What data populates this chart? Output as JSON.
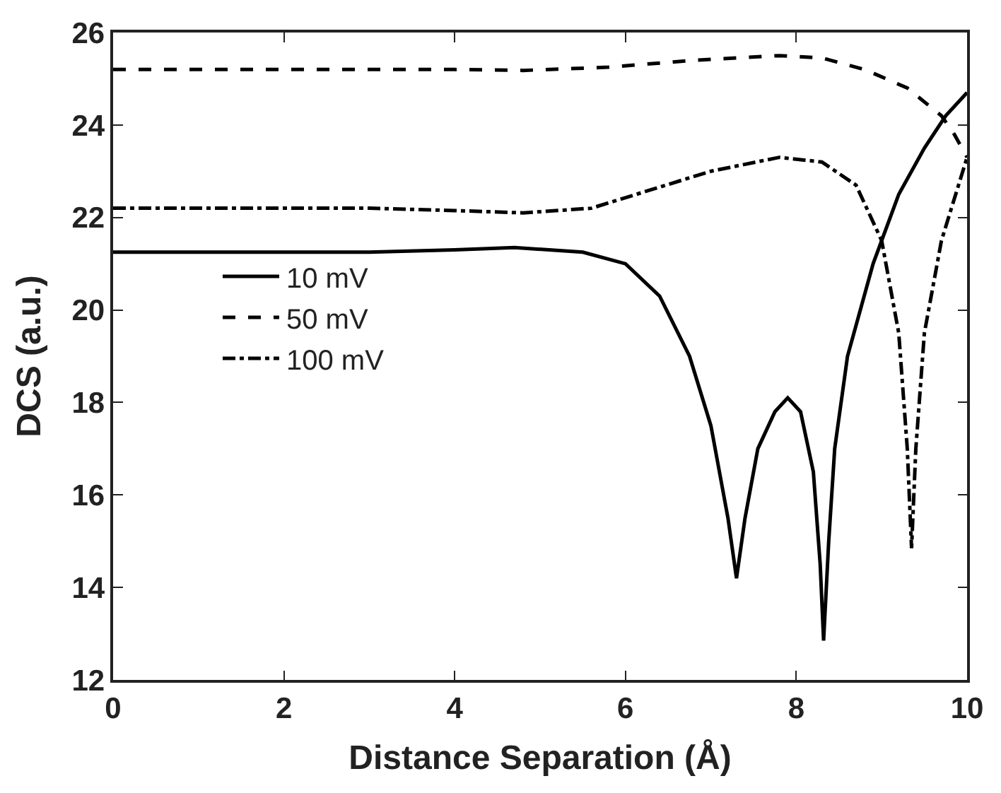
{
  "chart_data": {
    "type": "line",
    "xlabel": "Distance Separation (Å)",
    "ylabel": "DCS (a.u.)",
    "xlim": [
      0,
      10
    ],
    "xticks": [
      0,
      2,
      4,
      6,
      8,
      10
    ],
    "ylim": [
      12,
      26
    ],
    "yticks": [
      12,
      14,
      16,
      18,
      20,
      22,
      24,
      26
    ],
    "legend": "left",
    "marker": "none",
    "series": [
      {
        "name": "10 mV",
        "color": "#000000",
        "line_style": "solid",
        "x": [
          0,
          1,
          2,
          3,
          4,
          4.7,
          5.5,
          6.0,
          6.4,
          6.75,
          7.0,
          7.2,
          7.3,
          7.4,
          7.55,
          7.75,
          7.9,
          8.05,
          8.2,
          8.28,
          8.32,
          8.38,
          8.45,
          8.6,
          8.9,
          9.2,
          9.5,
          9.75,
          10
        ],
        "values": [
          21.25,
          21.25,
          21.25,
          21.25,
          21.3,
          21.35,
          21.25,
          21.0,
          20.3,
          19.0,
          17.5,
          15.5,
          14.2,
          15.5,
          17.0,
          17.8,
          18.1,
          17.8,
          16.5,
          14.5,
          12.85,
          15.0,
          17.0,
          19.0,
          21.0,
          22.5,
          23.5,
          24.2,
          24.7
        ]
      },
      {
        "name": "50 mV",
        "color": "#000000",
        "line_style": "dashed",
        "x": [
          0,
          1,
          2,
          3,
          4,
          4.8,
          5.8,
          6.8,
          7.8,
          8.3,
          8.8,
          9.3,
          9.7,
          9.85,
          10
        ],
        "values": [
          25.2,
          25.2,
          25.2,
          25.2,
          25.2,
          25.18,
          25.25,
          25.4,
          25.5,
          25.45,
          25.2,
          24.8,
          24.2,
          23.8,
          23.3
        ]
      },
      {
        "name": "100 mV",
        "color": "#000000",
        "line_style": "dashdot",
        "x": [
          0,
          1,
          2,
          3,
          4,
          4.8,
          5.6,
          6.3,
          7.0,
          7.8,
          8.3,
          8.7,
          9.0,
          9.2,
          9.3,
          9.35,
          9.4,
          9.5,
          9.7,
          10
        ],
        "values": [
          22.2,
          22.2,
          22.2,
          22.2,
          22.15,
          22.1,
          22.2,
          22.6,
          23.0,
          23.3,
          23.2,
          22.7,
          21.5,
          19.5,
          17.0,
          14.85,
          17.0,
          19.5,
          21.5,
          23.3
        ]
      }
    ]
  }
}
